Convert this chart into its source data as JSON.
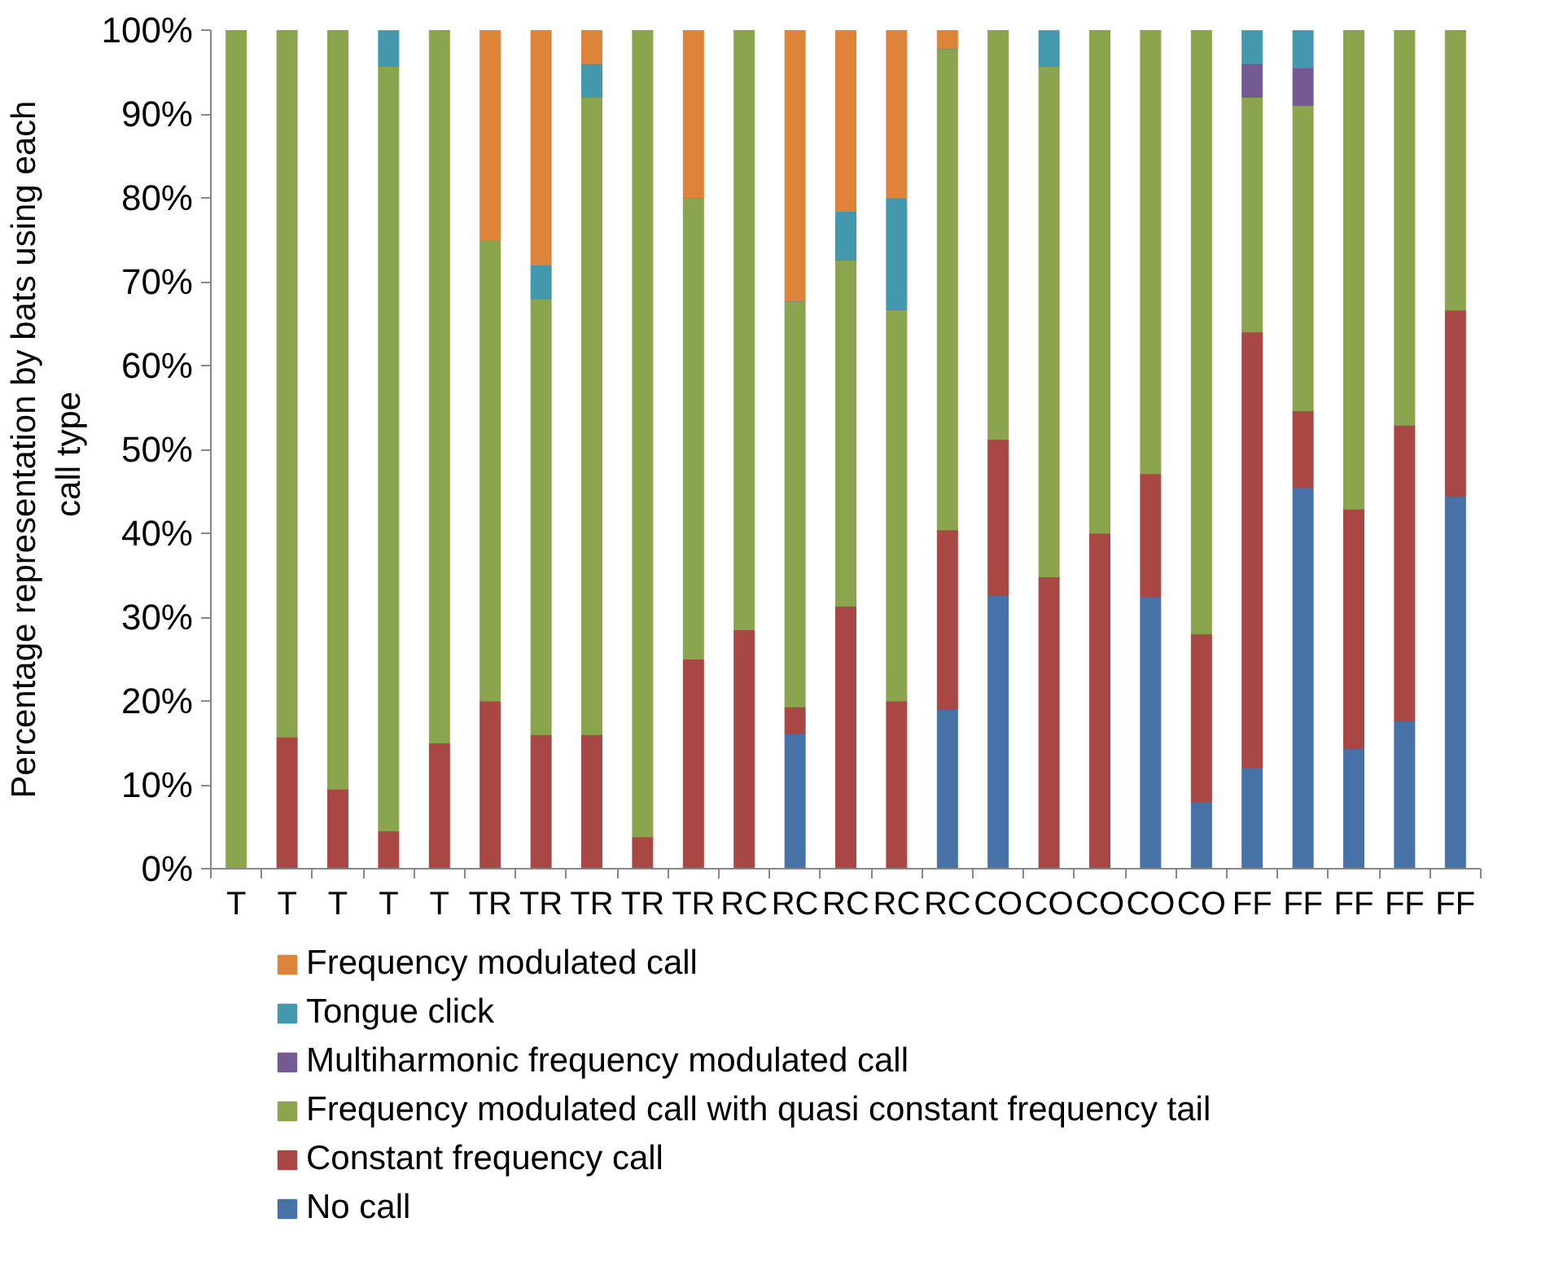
{
  "chart_data": {
    "type": "bar",
    "stacked": true,
    "ylabel": "Percentage representation by bats using each call  type",
    "categories": [
      "T",
      "T",
      "T",
      "T",
      "T",
      "TR",
      "TR",
      "TR",
      "TR",
      "TR",
      "RC",
      "RC",
      "RC",
      "RC",
      "RC",
      "CO",
      "CO",
      "CO",
      "CO",
      "CO",
      "FF",
      "FF",
      "FF",
      "FF",
      "FF"
    ],
    "series": [
      {
        "name": "No call",
        "color": "#4672a8",
        "values": [
          0,
          0,
          0,
          0,
          0,
          0,
          0,
          0,
          0,
          0,
          0,
          16.1,
          0,
          0,
          19,
          32.6,
          0,
          0,
          32.4,
          8,
          12,
          45.5,
          14.3,
          17.6,
          44.4
        ]
      },
      {
        "name": "Constant frequency call",
        "color": "#a94744",
        "values": [
          0,
          15.7,
          9.5,
          4.5,
          15,
          20,
          16,
          16,
          3.8,
          25,
          28.5,
          3.2,
          31.3,
          20,
          21.4,
          18.6,
          34.8,
          40,
          14.7,
          20,
          52,
          9.1,
          28.6,
          35.3,
          22.2
        ]
      },
      {
        "name": "Frequency modulated call with quasi constant frequency tail",
        "color": "#8aa54d",
        "values": [
          100,
          84.3,
          90.5,
          91.2,
          85,
          55,
          52,
          76,
          96.2,
          55,
          71.5,
          48.4,
          41.3,
          46.7,
          57.4,
          48.8,
          60.9,
          60,
          52.9,
          72,
          28,
          36.4,
          57.1,
          47.1,
          33.4
        ]
      },
      {
        "name": "Multiharmonic frequency modulated call",
        "color": "#745a93",
        "values": [
          0,
          0,
          0,
          0,
          0,
          0,
          0,
          0,
          0,
          0,
          0,
          0,
          0,
          0,
          0,
          0,
          0,
          0,
          0,
          0,
          4,
          4.5,
          0,
          0,
          0
        ]
      },
      {
        "name": "Tongue click",
        "color": "#4398ae",
        "values": [
          0,
          0,
          0,
          4.3,
          0,
          0,
          4,
          4,
          0,
          0,
          0,
          0,
          5.8,
          13.3,
          0,
          0,
          4.3,
          0,
          0,
          0,
          4,
          4.5,
          0,
          0,
          0
        ]
      },
      {
        "name": "Frequency modulated call",
        "color": "#dd843a",
        "values": [
          0,
          0,
          0,
          0,
          0,
          25,
          28,
          4,
          0,
          20,
          0,
          32.3,
          21.6,
          20,
          2.2,
          0,
          0,
          0,
          0,
          0,
          0,
          0,
          0,
          0,
          0
        ]
      }
    ],
    "ylim": [
      0,
      100
    ],
    "yticks": [
      {
        "value": 0,
        "label": "0%"
      },
      {
        "value": 10,
        "label": "10%"
      },
      {
        "value": 20,
        "label": "20%"
      },
      {
        "value": 30,
        "label": "30%"
      },
      {
        "value": 40,
        "label": "40%"
      },
      {
        "value": 50,
        "label": "50%"
      },
      {
        "value": 60,
        "label": "60%"
      },
      {
        "value": 70,
        "label": "70%"
      },
      {
        "value": 80,
        "label": "80%"
      },
      {
        "value": 90,
        "label": "90%"
      },
      {
        "value": 100,
        "label": "100%"
      }
    ],
    "grid": false,
    "legend": "bottom"
  }
}
